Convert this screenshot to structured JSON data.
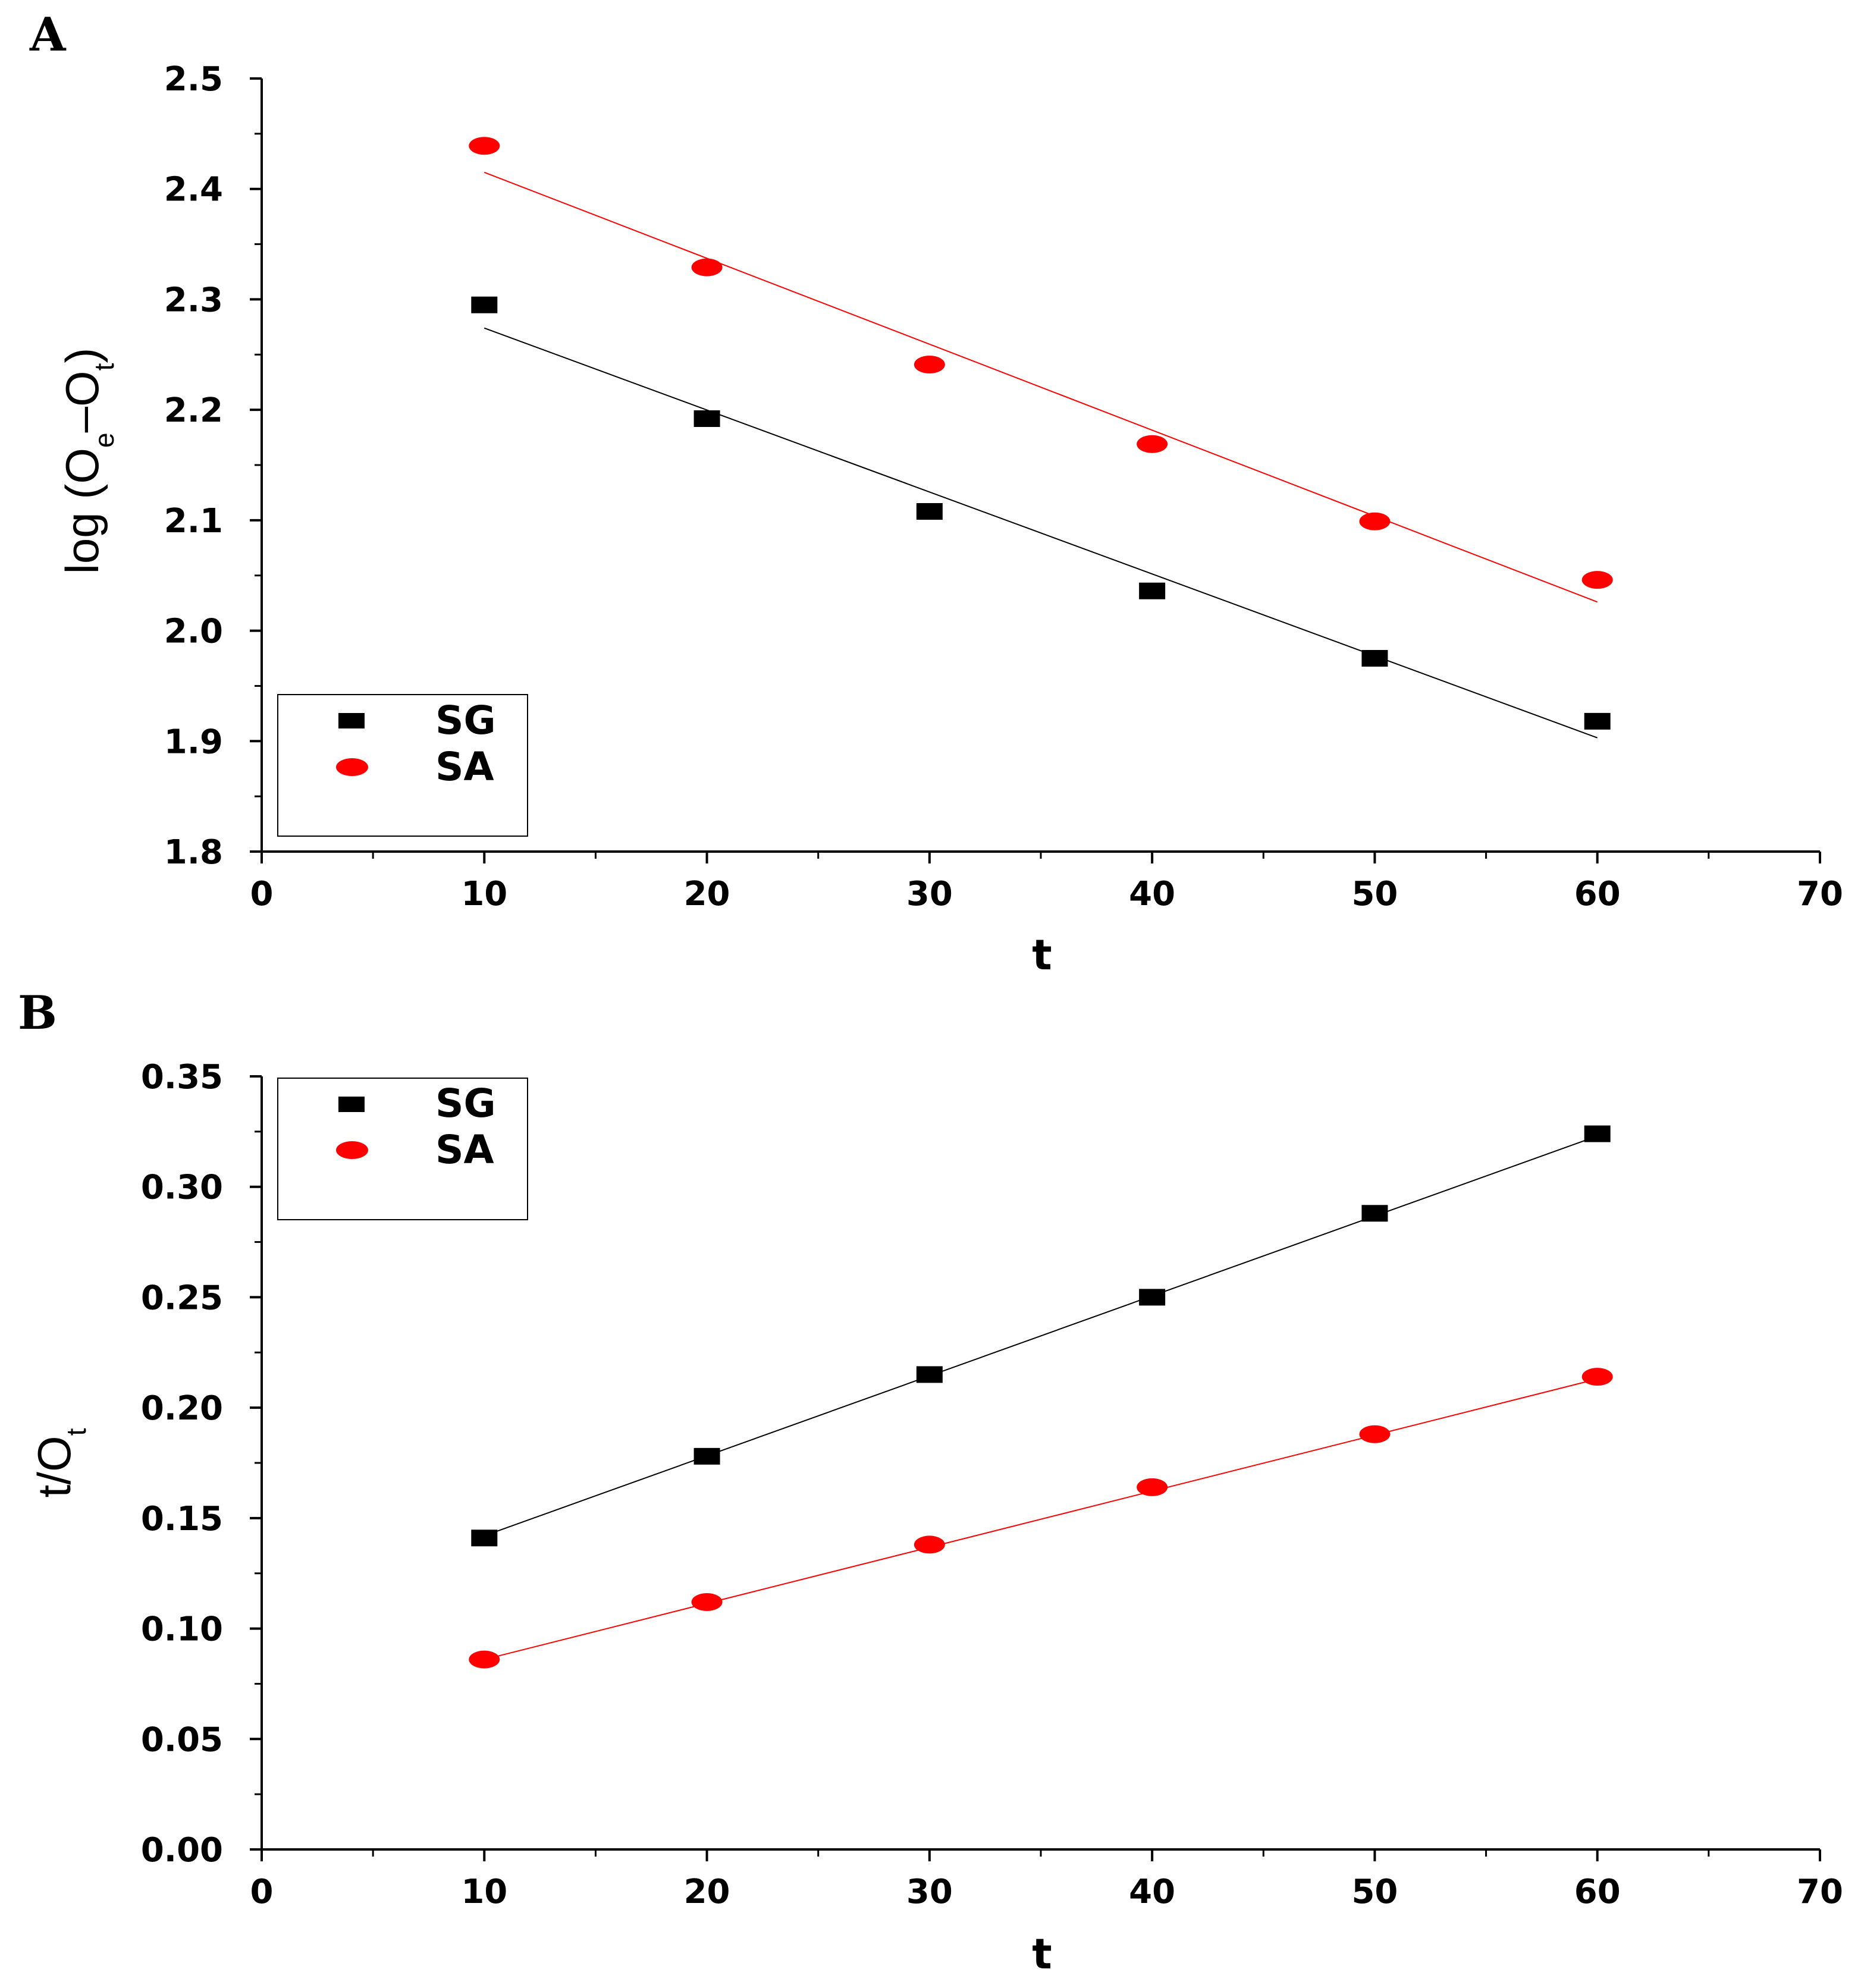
{
  "chart_data": [
    {
      "panel": "A",
      "type": "scatter",
      "xlabel": "t",
      "ylabel": {
        "base": "log (O",
        "sub1": "e",
        "mid": "–O",
        "sub2": "t",
        "end": ")"
      },
      "xlim": [
        0,
        70
      ],
      "ylim": [
        1.8,
        2.5
      ],
      "xticks": [
        0,
        10,
        20,
        30,
        40,
        50,
        60,
        70
      ],
      "xtick_labels": [
        "0",
        "10",
        "20",
        "30",
        "40",
        "50",
        "60",
        "70"
      ],
      "yticks": [
        1.8,
        1.9,
        2.0,
        2.1,
        2.2,
        2.3,
        2.4,
        2.5
      ],
      "ytick_labels": [
        "1.8",
        "1.9",
        "2.0",
        "2.1",
        "2.2",
        "2.3",
        "2.4",
        "2.5"
      ],
      "legend_position": "bottom-left",
      "series": [
        {
          "name": "SG",
          "marker": "square",
          "color": "#000000",
          "x": [
            10,
            20,
            30,
            40,
            50,
            60
          ],
          "y": [
            2.295,
            2.192,
            2.108,
            2.036,
            1.975,
            1.918
          ],
          "fit": {
            "x": [
              10,
              60
            ],
            "y": [
              2.274,
              1.903
            ]
          }
        },
        {
          "name": "SA",
          "marker": "circle",
          "color": "#ff0000",
          "x": [
            10,
            20,
            30,
            40,
            50,
            60
          ],
          "y": [
            2.439,
            2.329,
            2.241,
            2.169,
            2.099,
            2.046
          ],
          "fit": {
            "x": [
              10,
              60
            ],
            "y": [
              2.415,
              2.026
            ]
          }
        }
      ]
    },
    {
      "panel": "B",
      "type": "scatter",
      "xlabel": "t",
      "ylabel": {
        "base": "t/O",
        "sub1": "t"
      },
      "xlim": [
        0,
        70
      ],
      "ylim": [
        0.0,
        0.35
      ],
      "xticks": [
        0,
        10,
        20,
        30,
        40,
        50,
        60,
        70
      ],
      "xtick_labels": [
        "0",
        "10",
        "20",
        "30",
        "40",
        "50",
        "60",
        "70"
      ],
      "yticks": [
        0.0,
        0.05,
        0.1,
        0.15,
        0.2,
        0.25,
        0.3,
        0.35
      ],
      "ytick_labels": [
        "0.00",
        "0.05",
        "0.10",
        "0.15",
        "0.20",
        "0.25",
        "0.30",
        "0.35"
      ],
      "legend_position": "top-left",
      "series": [
        {
          "name": "SG",
          "marker": "square",
          "color": "#000000",
          "x": [
            10,
            20,
            30,
            40,
            50,
            60
          ],
          "y": [
            0.141,
            0.178,
            0.215,
            0.25,
            0.288,
            0.324
          ],
          "fit": {
            "x": [
              10,
              60
            ],
            "y": [
              0.142,
              0.323
            ]
          }
        },
        {
          "name": "SA",
          "marker": "circle",
          "color": "#ff0000",
          "x": [
            10,
            20,
            30,
            40,
            50,
            60
          ],
          "y": [
            0.086,
            0.112,
            0.138,
            0.164,
            0.188,
            0.214
          ],
          "fit": {
            "x": [
              10,
              60
            ],
            "y": [
              0.086,
              0.213
            ]
          }
        }
      ]
    }
  ]
}
